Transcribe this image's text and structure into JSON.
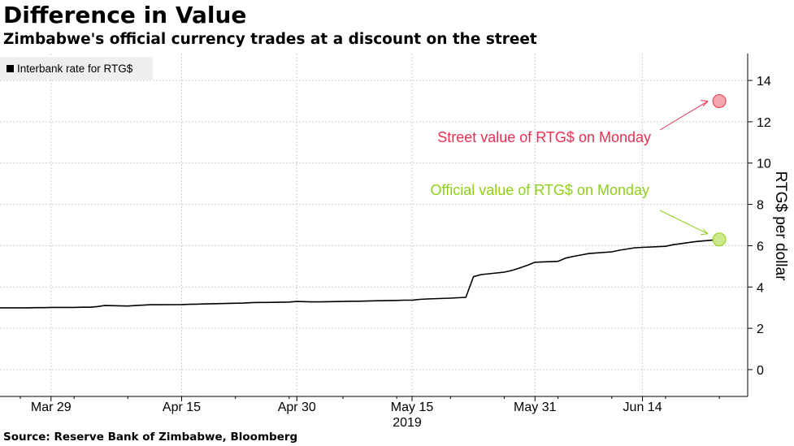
{
  "title": "Difference in Value",
  "subtitle": "Zimbabwe's official currency trades at a discount on the street",
  "source": "Source: Reserve Bank of Zimbabwe, Bloomberg",
  "chart_data": {
    "type": "line",
    "ylabel": "RTG$ per dollar",
    "ylim": [
      -1.3,
      15.3
    ],
    "y_ticks": [
      0,
      2,
      4,
      6,
      8,
      10,
      12,
      14
    ],
    "x_range": [
      "2019-03-25",
      "2019-06-26"
    ],
    "x_ticks": [
      {
        "label": "Mar 29",
        "date": "2019-03-29"
      },
      {
        "label": "Apr 15",
        "date": "2019-04-15"
      },
      {
        "label": "Apr 30",
        "date": "2019-04-30"
      },
      {
        "label": "May 15",
        "date": "2019-05-15"
      },
      {
        "label": "May 31",
        "date": "2019-05-31"
      },
      {
        "label": "Jun 14",
        "date": "2019-06-14"
      }
    ],
    "x_year_label": "2019",
    "grid": true,
    "legend": {
      "position": "top-left",
      "entries": [
        "Interbank rate for RTG$"
      ]
    },
    "series": [
      {
        "name": "Interbank rate for RTG$",
        "color": "#000000",
        "points": [
          [
            "2019-03-25",
            2.99
          ],
          [
            "2019-03-26",
            2.99
          ],
          [
            "2019-03-27",
            3.0
          ],
          [
            "2019-03-28",
            3.0
          ],
          [
            "2019-03-29",
            3.01
          ],
          [
            "2019-04-01",
            3.01
          ],
          [
            "2019-04-02",
            3.02
          ],
          [
            "2019-04-03",
            3.02
          ],
          [
            "2019-04-04",
            3.05
          ],
          [
            "2019-04-05",
            3.1
          ],
          [
            "2019-04-08",
            3.08
          ],
          [
            "2019-04-09",
            3.1
          ],
          [
            "2019-04-10",
            3.12
          ],
          [
            "2019-04-11",
            3.14
          ],
          [
            "2019-04-12",
            3.14
          ],
          [
            "2019-04-15",
            3.15
          ],
          [
            "2019-04-16",
            3.16
          ],
          [
            "2019-04-17",
            3.17
          ],
          [
            "2019-04-18",
            3.18
          ],
          [
            "2019-04-23",
            3.22
          ],
          [
            "2019-04-24",
            3.24
          ],
          [
            "2019-04-25",
            3.25
          ],
          [
            "2019-04-26",
            3.25
          ],
          [
            "2019-04-29",
            3.27
          ],
          [
            "2019-04-30",
            3.3
          ],
          [
            "2019-05-02",
            3.28
          ],
          [
            "2019-05-03",
            3.28
          ],
          [
            "2019-05-06",
            3.3
          ],
          [
            "2019-05-07",
            3.31
          ],
          [
            "2019-05-08",
            3.31
          ],
          [
            "2019-05-09",
            3.32
          ],
          [
            "2019-05-10",
            3.33
          ],
          [
            "2019-05-13",
            3.35
          ],
          [
            "2019-05-14",
            3.36
          ],
          [
            "2019-05-15",
            3.36
          ],
          [
            "2019-05-16",
            3.4
          ],
          [
            "2019-05-17",
            3.42
          ],
          [
            "2019-05-20",
            3.46
          ],
          [
            "2019-05-21",
            3.48
          ],
          [
            "2019-05-22",
            3.5
          ],
          [
            "2019-05-23",
            4.5
          ],
          [
            "2019-05-24",
            4.6
          ],
          [
            "2019-05-27",
            4.72
          ],
          [
            "2019-05-28",
            4.8
          ],
          [
            "2019-05-29",
            4.92
          ],
          [
            "2019-05-30",
            5.05
          ],
          [
            "2019-05-31",
            5.2
          ],
          [
            "2019-06-03",
            5.24
          ],
          [
            "2019-06-04",
            5.4
          ],
          [
            "2019-06-05",
            5.48
          ],
          [
            "2019-06-06",
            5.55
          ],
          [
            "2019-06-07",
            5.62
          ],
          [
            "2019-06-10",
            5.7
          ],
          [
            "2019-06-11",
            5.78
          ],
          [
            "2019-06-12",
            5.84
          ],
          [
            "2019-06-13",
            5.9
          ],
          [
            "2019-06-14",
            5.92
          ],
          [
            "2019-06-17",
            5.97
          ],
          [
            "2019-06-18",
            6.05
          ],
          [
            "2019-06-19",
            6.1
          ],
          [
            "2019-06-20",
            6.15
          ],
          [
            "2019-06-21",
            6.2
          ],
          [
            "2019-06-24",
            6.3
          ]
        ]
      }
    ],
    "annotations": [
      {
        "text": "Street value of RTG$ on Monday",
        "date": "2019-06-24",
        "value": 13.0,
        "color": "#e8304f",
        "marker_fill": "#f4a6ae",
        "marker_stroke": "#e8304f"
      },
      {
        "text": "Official value of RTG$ on Monday",
        "date": "2019-06-24",
        "value": 6.3,
        "color": "#8fcf1b",
        "marker_fill": "#cbe98a",
        "marker_stroke": "#8fcf1b"
      }
    ]
  }
}
